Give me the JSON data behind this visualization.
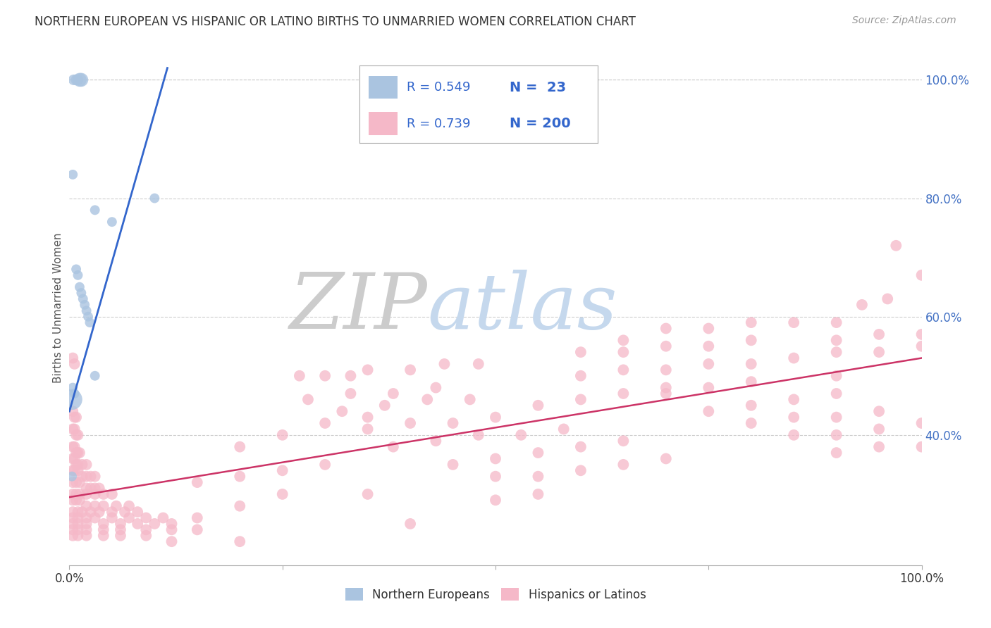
{
  "title": "NORTHERN EUROPEAN VS HISPANIC OR LATINO BIRTHS TO UNMARRIED WOMEN CORRELATION CHART",
  "source": "Source: ZipAtlas.com",
  "ylabel": "Births to Unmarried Women",
  "blue_R": 0.549,
  "blue_N": 23,
  "pink_R": 0.739,
  "pink_N": 200,
  "blue_color": "#aac4e0",
  "pink_color": "#f5b8c8",
  "blue_line_color": "#3366cc",
  "pink_line_color": "#cc3366",
  "zip_color": "#cccccc",
  "atlas_color": "#c0d4e8",
  "legend_R_color": "#3366cc",
  "blue_scatter": [
    [
      0.005,
      1.0
    ],
    [
      0.008,
      1.0
    ],
    [
      0.01,
      1.0
    ],
    [
      0.012,
      1.0
    ],
    [
      0.014,
      1.0
    ],
    [
      0.004,
      0.84
    ],
    [
      0.03,
      0.78
    ],
    [
      0.05,
      0.76
    ],
    [
      0.1,
      0.8
    ],
    [
      0.008,
      0.68
    ],
    [
      0.01,
      0.67
    ],
    [
      0.012,
      0.65
    ],
    [
      0.014,
      0.64
    ],
    [
      0.016,
      0.63
    ],
    [
      0.018,
      0.62
    ],
    [
      0.02,
      0.61
    ],
    [
      0.022,
      0.6
    ],
    [
      0.024,
      0.59
    ],
    [
      0.03,
      0.5
    ],
    [
      0.004,
      0.48
    ],
    [
      0.006,
      0.47
    ],
    [
      0.003,
      0.46
    ],
    [
      0.003,
      0.33
    ]
  ],
  "blue_sizes": [
    120,
    120,
    120,
    200,
    200,
    100,
    100,
    100,
    100,
    100,
    100,
    100,
    100,
    100,
    100,
    100,
    100,
    100,
    100,
    100,
    100,
    450,
    100
  ],
  "pink_scatter": [
    [
      0.004,
      0.53
    ],
    [
      0.006,
      0.52
    ],
    [
      0.004,
      0.44
    ],
    [
      0.006,
      0.43
    ],
    [
      0.008,
      0.43
    ],
    [
      0.004,
      0.41
    ],
    [
      0.006,
      0.41
    ],
    [
      0.008,
      0.4
    ],
    [
      0.01,
      0.4
    ],
    [
      0.004,
      0.38
    ],
    [
      0.006,
      0.38
    ],
    [
      0.008,
      0.37
    ],
    [
      0.01,
      0.37
    ],
    [
      0.012,
      0.37
    ],
    [
      0.004,
      0.36
    ],
    [
      0.006,
      0.36
    ],
    [
      0.008,
      0.35
    ],
    [
      0.01,
      0.35
    ],
    [
      0.015,
      0.35
    ],
    [
      0.02,
      0.35
    ],
    [
      0.004,
      0.34
    ],
    [
      0.006,
      0.34
    ],
    [
      0.01,
      0.34
    ],
    [
      0.015,
      0.33
    ],
    [
      0.02,
      0.33
    ],
    [
      0.025,
      0.33
    ],
    [
      0.03,
      0.33
    ],
    [
      0.004,
      0.32
    ],
    [
      0.008,
      0.32
    ],
    [
      0.012,
      0.32
    ],
    [
      0.02,
      0.31
    ],
    [
      0.025,
      0.31
    ],
    [
      0.03,
      0.31
    ],
    [
      0.035,
      0.31
    ],
    [
      0.004,
      0.3
    ],
    [
      0.008,
      0.3
    ],
    [
      0.012,
      0.3
    ],
    [
      0.02,
      0.3
    ],
    [
      0.03,
      0.3
    ],
    [
      0.04,
      0.3
    ],
    [
      0.05,
      0.3
    ],
    [
      0.004,
      0.29
    ],
    [
      0.008,
      0.29
    ],
    [
      0.012,
      0.29
    ],
    [
      0.02,
      0.28
    ],
    [
      0.03,
      0.28
    ],
    [
      0.04,
      0.28
    ],
    [
      0.055,
      0.28
    ],
    [
      0.07,
      0.28
    ],
    [
      0.004,
      0.27
    ],
    [
      0.01,
      0.27
    ],
    [
      0.015,
      0.27
    ],
    [
      0.025,
      0.27
    ],
    [
      0.035,
      0.27
    ],
    [
      0.05,
      0.27
    ],
    [
      0.065,
      0.27
    ],
    [
      0.08,
      0.27
    ],
    [
      0.004,
      0.26
    ],
    [
      0.01,
      0.26
    ],
    [
      0.02,
      0.26
    ],
    [
      0.03,
      0.26
    ],
    [
      0.05,
      0.26
    ],
    [
      0.07,
      0.26
    ],
    [
      0.09,
      0.26
    ],
    [
      0.11,
      0.26
    ],
    [
      0.004,
      0.25
    ],
    [
      0.01,
      0.25
    ],
    [
      0.02,
      0.25
    ],
    [
      0.04,
      0.25
    ],
    [
      0.06,
      0.25
    ],
    [
      0.08,
      0.25
    ],
    [
      0.1,
      0.25
    ],
    [
      0.12,
      0.25
    ],
    [
      0.004,
      0.24
    ],
    [
      0.01,
      0.24
    ],
    [
      0.02,
      0.24
    ],
    [
      0.04,
      0.24
    ],
    [
      0.06,
      0.24
    ],
    [
      0.09,
      0.24
    ],
    [
      0.12,
      0.24
    ],
    [
      0.15,
      0.24
    ],
    [
      0.004,
      0.23
    ],
    [
      0.01,
      0.23
    ],
    [
      0.02,
      0.23
    ],
    [
      0.04,
      0.23
    ],
    [
      0.06,
      0.23
    ],
    [
      0.09,
      0.23
    ],
    [
      0.15,
      0.26
    ],
    [
      0.2,
      0.28
    ],
    [
      0.25,
      0.3
    ],
    [
      0.15,
      0.32
    ],
    [
      0.2,
      0.33
    ],
    [
      0.25,
      0.34
    ],
    [
      0.3,
      0.35
    ],
    [
      0.2,
      0.38
    ],
    [
      0.25,
      0.4
    ],
    [
      0.3,
      0.42
    ],
    [
      0.35,
      0.43
    ],
    [
      0.28,
      0.46
    ],
    [
      0.33,
      0.47
    ],
    [
      0.38,
      0.47
    ],
    [
      0.43,
      0.48
    ],
    [
      0.3,
      0.5
    ],
    [
      0.35,
      0.51
    ],
    [
      0.4,
      0.51
    ],
    [
      0.44,
      0.52
    ],
    [
      0.48,
      0.52
    ],
    [
      0.32,
      0.44
    ],
    [
      0.37,
      0.45
    ],
    [
      0.42,
      0.46
    ],
    [
      0.47,
      0.46
    ],
    [
      0.35,
      0.41
    ],
    [
      0.4,
      0.42
    ],
    [
      0.45,
      0.42
    ],
    [
      0.5,
      0.43
    ],
    [
      0.38,
      0.38
    ],
    [
      0.43,
      0.39
    ],
    [
      0.48,
      0.4
    ],
    [
      0.53,
      0.4
    ],
    [
      0.58,
      0.41
    ],
    [
      0.45,
      0.35
    ],
    [
      0.5,
      0.36
    ],
    [
      0.55,
      0.37
    ],
    [
      0.6,
      0.38
    ],
    [
      0.65,
      0.39
    ],
    [
      0.5,
      0.33
    ],
    [
      0.55,
      0.33
    ],
    [
      0.6,
      0.34
    ],
    [
      0.65,
      0.35
    ],
    [
      0.7,
      0.36
    ],
    [
      0.55,
      0.45
    ],
    [
      0.6,
      0.46
    ],
    [
      0.65,
      0.47
    ],
    [
      0.7,
      0.47
    ],
    [
      0.75,
      0.48
    ],
    [
      0.6,
      0.5
    ],
    [
      0.65,
      0.51
    ],
    [
      0.7,
      0.51
    ],
    [
      0.75,
      0.52
    ],
    [
      0.8,
      0.52
    ],
    [
      0.65,
      0.54
    ],
    [
      0.7,
      0.55
    ],
    [
      0.75,
      0.55
    ],
    [
      0.8,
      0.56
    ],
    [
      0.7,
      0.58
    ],
    [
      0.75,
      0.58
    ],
    [
      0.8,
      0.59
    ],
    [
      0.85,
      0.59
    ],
    [
      0.9,
      0.59
    ],
    [
      0.75,
      0.44
    ],
    [
      0.8,
      0.45
    ],
    [
      0.85,
      0.46
    ],
    [
      0.9,
      0.47
    ],
    [
      0.8,
      0.42
    ],
    [
      0.85,
      0.43
    ],
    [
      0.9,
      0.43
    ],
    [
      0.95,
      0.44
    ],
    [
      0.85,
      0.4
    ],
    [
      0.9,
      0.4
    ],
    [
      0.95,
      0.41
    ],
    [
      1.0,
      0.42
    ],
    [
      0.9,
      0.37
    ],
    [
      0.95,
      0.38
    ],
    [
      1.0,
      0.38
    ],
    [
      0.85,
      0.53
    ],
    [
      0.9,
      0.54
    ],
    [
      0.95,
      0.54
    ],
    [
      1.0,
      0.55
    ],
    [
      0.9,
      0.56
    ],
    [
      0.95,
      0.57
    ],
    [
      1.0,
      0.57
    ],
    [
      0.93,
      0.62
    ],
    [
      0.96,
      0.63
    ],
    [
      1.0,
      0.67
    ],
    [
      0.97,
      0.72
    ],
    [
      0.27,
      0.5
    ],
    [
      0.33,
      0.5
    ],
    [
      0.12,
      0.22
    ],
    [
      0.2,
      0.22
    ],
    [
      0.35,
      0.3
    ],
    [
      0.4,
      0.25
    ],
    [
      0.5,
      0.29
    ],
    [
      0.55,
      0.3
    ],
    [
      0.6,
      0.54
    ],
    [
      0.65,
      0.56
    ],
    [
      0.7,
      0.48
    ],
    [
      0.8,
      0.49
    ],
    [
      0.9,
      0.5
    ]
  ],
  "blue_line_pts": [
    [
      0.0,
      0.44
    ],
    [
      0.115,
      1.02
    ]
  ],
  "pink_line_pts": [
    [
      0.0,
      0.295
    ],
    [
      1.0,
      0.53
    ]
  ],
  "xlim": [
    0.0,
    1.0
  ],
  "ylim": [
    0.18,
    1.05
  ],
  "ytick_vals": [
    0.4,
    0.6,
    0.8,
    1.0
  ],
  "ytick_labels": [
    "40.0%",
    "60.0%",
    "80.0%",
    "100.0%"
  ],
  "figsize": [
    14.06,
    8.92
  ],
  "dpi": 100
}
